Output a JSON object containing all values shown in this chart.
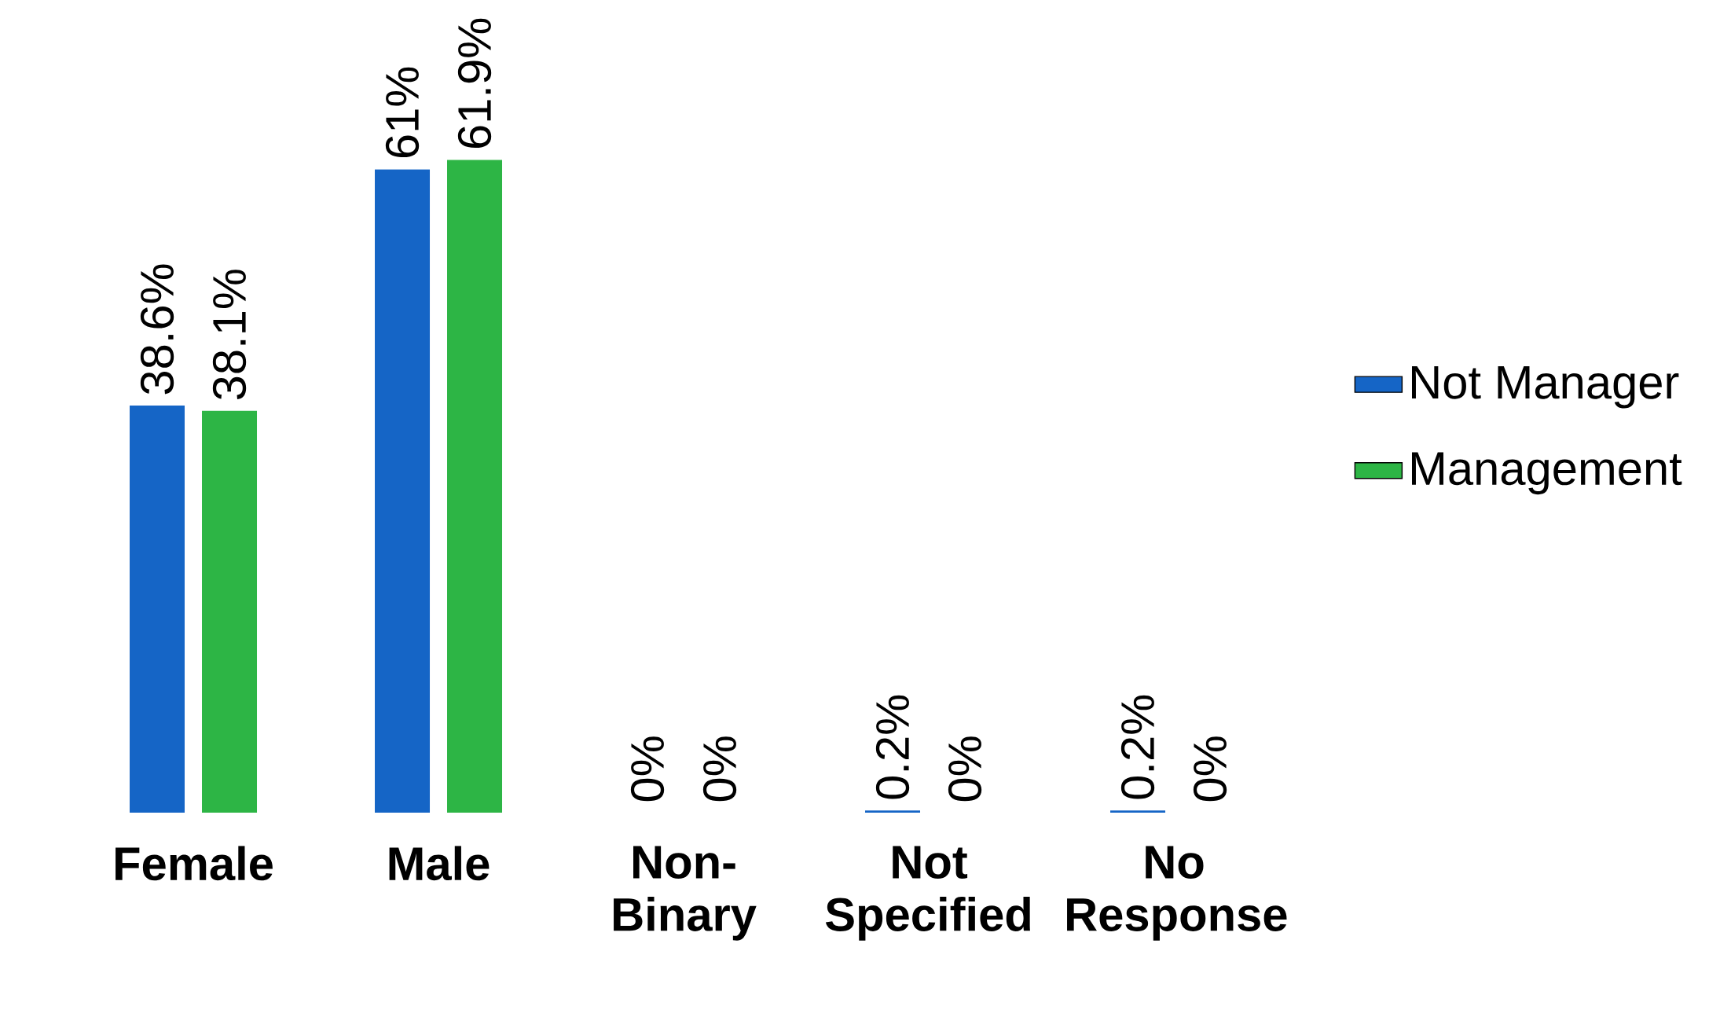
{
  "chart_data": {
    "type": "bar",
    "categories": [
      "Female",
      "Male",
      "Non-Binary",
      "Not Specified",
      "No Response"
    ],
    "series": [
      {
        "name": "Not Manager",
        "color": "#1565c6",
        "values": [
          38.6,
          61,
          0,
          0.2,
          0.2
        ],
        "value_labels": [
          "38.6%",
          "61%",
          "0%",
          "0.2%",
          "0.2%"
        ]
      },
      {
        "name": "Management",
        "color": "#2db545",
        "values": [
          38.1,
          61.9,
          0,
          0,
          0
        ],
        "value_labels": [
          "38.1%",
          "61.9%",
          "0%",
          "0%",
          "0%"
        ]
      }
    ],
    "legend": "right"
  }
}
